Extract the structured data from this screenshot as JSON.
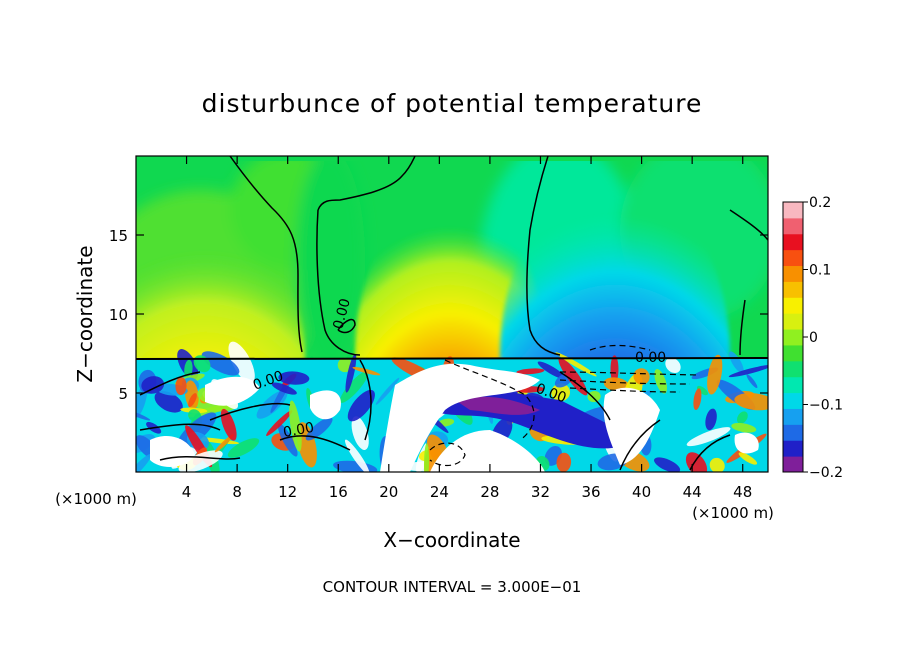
{
  "chart_data": {
    "type": "heatmap",
    "title": "disturbunce of potential temperature",
    "xlabel": "X−coordinate",
    "ylabel": "Z−coordinate",
    "x_unit_left": "(×1000 m)",
    "x_unit_right": "(×1000 m)",
    "footer": "CONTOUR INTERVAL = 3.000E−01",
    "xlim": [
      0,
      50
    ],
    "ylim": [
      0,
      20
    ],
    "x_ticks": [
      4,
      8,
      12,
      16,
      20,
      24,
      28,
      32,
      36,
      40,
      44,
      48
    ],
    "x_tick_labels": [
      "4",
      "8",
      "12",
      "16",
      "20",
      "24",
      "28",
      "32",
      "36",
      "40",
      "44",
      "48"
    ],
    "y_ticks": [
      5,
      10,
      15
    ],
    "y_tick_labels": [
      "5",
      "10",
      "15"
    ],
    "colorbar": {
      "range": [
        -0.2,
        0.2
      ],
      "ticks": [
        -0.2,
        -0.1,
        0,
        0.1,
        0.2
      ],
      "tick_labels": [
        "−0.2",
        "−0.1",
        "0",
        "0.1",
        "0.2"
      ],
      "colors": [
        "#7f1f9a",
        "#2020c8",
        "#1e6ae6",
        "#16a0f0",
        "#00d8e8",
        "#00e8b0",
        "#10e070",
        "#40e030",
        "#90f020",
        "#d8f010",
        "#f8f000",
        "#f8c000",
        "#f89000",
        "#f85010",
        "#e81020",
        "#f06070",
        "#f8b8c0"
      ]
    },
    "contour_labels": [
      "0.00",
      "0.00",
      "0.00",
      "0.00",
      "0.00"
    ],
    "features": [
      {
        "kind": "warm",
        "x": 25,
        "z": 10.5,
        "value": 0.16
      },
      {
        "kind": "warm",
        "x": 5,
        "z": 11,
        "value": 0.08
      },
      {
        "kind": "cold",
        "x": 37,
        "z": 11,
        "value": -0.2
      },
      {
        "kind": "cold",
        "x": 27,
        "z": 4.5,
        "value": -0.18
      }
    ]
  }
}
